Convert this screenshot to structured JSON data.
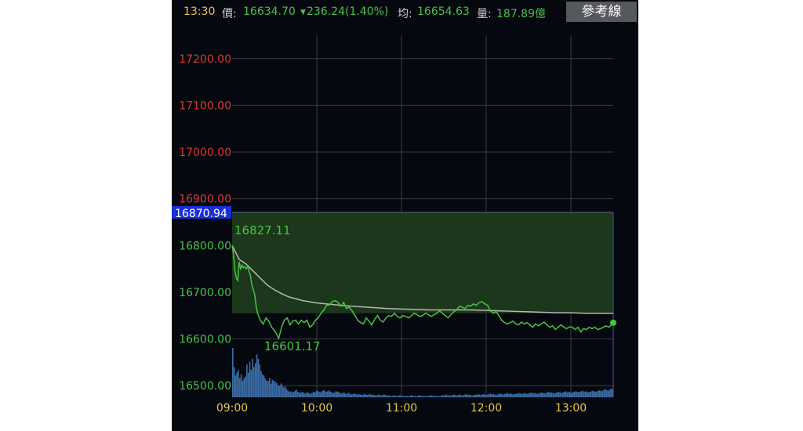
{
  "header": {
    "time": "13:30",
    "price_label": "價:",
    "price": "16634.70",
    "change_arrow": "▼",
    "change": "236.24(1.40%)",
    "avg_label": "均:",
    "avg": "16654.63",
    "volume_label": "量:",
    "volume": "187.89億",
    "ref_button": "參考線"
  },
  "colors": {
    "background": "#06080f",
    "grid": "#3a3d47",
    "up_text": "#d63a2e",
    "down_text": "#49c24a",
    "time_text": "#e3c84a",
    "price_line": "#46c53e",
    "avg_line": "#b7b7b7",
    "volume": "#3a6ea8",
    "ref_label_bg": "#1a2fd8",
    "fill": "#1e3a1c"
  },
  "chart_data": {
    "type": "line",
    "reference_price": 16870.94,
    "reference_label": "16870.94",
    "ylim": [
      16475,
      17250
    ],
    "y_ticks": [
      "17200.00",
      "17100.00",
      "17000.00",
      "16900.00",
      "16800.00",
      "16700.00",
      "16600.00",
      "16500.00"
    ],
    "x_ticks": [
      "09:00",
      "10:00",
      "11:00",
      "12:00",
      "13:00"
    ],
    "x_range_minutes": [
      0,
      270
    ],
    "high_label": "16827.11",
    "low_label": "16601.17",
    "series": [
      {
        "role": "price",
        "points": [
          [
            0,
            16800
          ],
          [
            1,
            16780
          ],
          [
            2,
            16745
          ],
          [
            3,
            16730
          ],
          [
            4,
            16725
          ],
          [
            5,
            16765
          ],
          [
            6,
            16750
          ],
          [
            7,
            16758
          ],
          [
            8,
            16752
          ],
          [
            9,
            16755
          ],
          [
            10,
            16750
          ],
          [
            11,
            16755
          ],
          [
            12,
            16745
          ],
          [
            13,
            16735
          ],
          [
            14,
            16715
          ],
          [
            15,
            16705
          ],
          [
            16,
            16695
          ],
          [
            17,
            16670
          ],
          [
            18,
            16655
          ],
          [
            20,
            16640
          ],
          [
            22,
            16632
          ],
          [
            24,
            16645
          ],
          [
            26,
            16638
          ],
          [
            28,
            16625
          ],
          [
            30,
            16618
          ],
          [
            32,
            16608
          ],
          [
            33,
            16601
          ],
          [
            35,
            16625
          ],
          [
            37,
            16640
          ],
          [
            39,
            16645
          ],
          [
            41,
            16630
          ],
          [
            43,
            16638
          ],
          [
            45,
            16640
          ],
          [
            47,
            16632
          ],
          [
            49,
            16640
          ],
          [
            51,
            16635
          ],
          [
            53,
            16640
          ],
          [
            55,
            16625
          ],
          [
            57,
            16630
          ],
          [
            59,
            16640
          ],
          [
            61,
            16645
          ],
          [
            63,
            16655
          ],
          [
            65,
            16662
          ],
          [
            67,
            16672
          ],
          [
            69,
            16673
          ],
          [
            71,
            16680
          ],
          [
            73,
            16682
          ],
          [
            75,
            16678
          ],
          [
            77,
            16670
          ],
          [
            79,
            16678
          ],
          [
            81,
            16665
          ],
          [
            83,
            16668
          ],
          [
            85,
            16660
          ],
          [
            87,
            16650
          ],
          [
            89,
            16640
          ],
          [
            91,
            16635
          ],
          [
            93,
            16632
          ],
          [
            95,
            16645
          ],
          [
            97,
            16638
          ],
          [
            99,
            16630
          ],
          [
            101,
            16642
          ],
          [
            103,
            16650
          ],
          [
            105,
            16640
          ],
          [
            107,
            16636
          ],
          [
            109,
            16645
          ],
          [
            111,
            16650
          ],
          [
            113,
            16648
          ],
          [
            115,
            16655
          ],
          [
            117,
            16648
          ],
          [
            119,
            16645
          ],
          [
            121,
            16650
          ],
          [
            123,
            16648
          ],
          [
            125,
            16645
          ],
          [
            127,
            16650
          ],
          [
            129,
            16655
          ],
          [
            131,
            16652
          ],
          [
            133,
            16648
          ],
          [
            135,
            16650
          ],
          [
            137,
            16655
          ],
          [
            139,
            16652
          ],
          [
            141,
            16648
          ],
          [
            143,
            16652
          ],
          [
            145,
            16655
          ],
          [
            147,
            16660
          ],
          [
            149,
            16655
          ],
          [
            151,
            16650
          ],
          [
            153,
            16645
          ],
          [
            155,
            16652
          ],
          [
            157,
            16658
          ],
          [
            159,
            16662
          ],
          [
            161,
            16670
          ],
          [
            163,
            16668
          ],
          [
            165,
            16665
          ],
          [
            167,
            16672
          ],
          [
            169,
            16670
          ],
          [
            171,
            16675
          ],
          [
            173,
            16672
          ],
          [
            175,
            16678
          ],
          [
            177,
            16680
          ],
          [
            179,
            16675
          ],
          [
            181,
            16672
          ],
          [
            183,
            16660
          ],
          [
            185,
            16655
          ],
          [
            187,
            16658
          ],
          [
            189,
            16650
          ],
          [
            191,
            16640
          ],
          [
            193,
            16635
          ],
          [
            195,
            16632
          ],
          [
            197,
            16635
          ],
          [
            199,
            16638
          ],
          [
            201,
            16632
          ],
          [
            203,
            16630
          ],
          [
            205,
            16636
          ],
          [
            207,
            16632
          ],
          [
            209,
            16635
          ],
          [
            211,
            16630
          ],
          [
            213,
            16625
          ],
          [
            215,
            16632
          ],
          [
            217,
            16628
          ],
          [
            219,
            16632
          ],
          [
            221,
            16636
          ],
          [
            223,
            16630
          ],
          [
            225,
            16625
          ],
          [
            227,
            16628
          ],
          [
            229,
            16620
          ],
          [
            231,
            16625
          ],
          [
            233,
            16630
          ],
          [
            235,
            16625
          ],
          [
            237,
            16622
          ],
          [
            239,
            16626
          ],
          [
            241,
            16625
          ],
          [
            243,
            16620
          ],
          [
            245,
            16625
          ],
          [
            247,
            16615
          ],
          [
            249,
            16622
          ],
          [
            251,
            16620
          ],
          [
            253,
            16625
          ],
          [
            255,
            16622
          ],
          [
            257,
            16625
          ],
          [
            259,
            16620
          ],
          [
            261,
            16622
          ],
          [
            263,
            16625
          ],
          [
            265,
            16628
          ],
          [
            267,
            16625
          ],
          [
            270,
            16634.7
          ]
        ]
      },
      {
        "role": "average",
        "points": [
          [
            0,
            16800
          ],
          [
            5,
            16770
          ],
          [
            10,
            16760
          ],
          [
            15,
            16745
          ],
          [
            20,
            16730
          ],
          [
            25,
            16715
          ],
          [
            30,
            16705
          ],
          [
            35,
            16697
          ],
          [
            40,
            16690
          ],
          [
            50,
            16682
          ],
          [
            60,
            16677
          ],
          [
            70,
            16674
          ],
          [
            80,
            16671
          ],
          [
            90,
            16669
          ],
          [
            100,
            16667
          ],
          [
            110,
            16665
          ],
          [
            120,
            16664
          ],
          [
            130,
            16663
          ],
          [
            140,
            16662
          ],
          [
            150,
            16662
          ],
          [
            160,
            16662
          ],
          [
            170,
            16662
          ],
          [
            180,
            16661
          ],
          [
            190,
            16660
          ],
          [
            200,
            16659
          ],
          [
            210,
            16658
          ],
          [
            220,
            16657
          ],
          [
            230,
            16656
          ],
          [
            240,
            16656
          ],
          [
            250,
            16655
          ],
          [
            260,
            16655
          ],
          [
            270,
            16654.63
          ]
        ]
      }
    ],
    "volume": [
      0.9,
      0.55,
      0.4,
      0.45,
      0.5,
      0.35,
      0.42,
      0.3,
      0.35,
      0.38,
      0.6,
      0.45,
      0.65,
      0.5,
      0.7,
      0.55,
      0.62,
      0.78,
      0.7,
      0.6,
      0.48,
      0.42,
      0.4,
      0.34,
      0.3,
      0.3,
      0.35,
      0.25,
      0.32,
      0.3,
      0.28,
      0.26,
      0.22,
      0.2,
      0.25,
      0.22,
      0.18,
      0.2,
      0.15,
      0.12,
      0.1,
      0.11,
      0.09,
      0.1,
      0.12,
      0.14,
      0.1,
      0.09,
      0.08,
      0.1,
      0.09,
      0.07,
      0.08,
      0.09,
      0.07,
      0.06,
      0.08,
      0.1,
      0.09,
      0.11,
      0.12,
      0.1,
      0.09,
      0.11,
      0.13,
      0.12,
      0.1,
      0.11,
      0.13,
      0.1,
      0.09,
      0.08,
      0.09,
      0.11,
      0.1,
      0.09,
      0.08,
      0.07,
      0.09,
      0.08,
      0.06,
      0.07,
      0.08,
      0.06,
      0.05,
      0.06,
      0.07,
      0.06,
      0.05,
      0.06,
      0.05,
      0.04,
      0.05,
      0.06,
      0.05,
      0.04,
      0.05,
      0.06,
      0.04,
      0.05,
      0.04,
      0.03,
      0.04,
      0.05,
      0.04,
      0.03,
      0.04,
      0.05,
      0.04,
      0.03,
      0.04,
      0.03,
      0.02,
      0.03,
      0.04,
      0.03,
      0.02,
      0.03,
      0.04,
      0.03,
      0.02,
      0.03,
      0.02,
      0.03,
      0.02,
      0.03,
      0.04,
      0.03,
      0.02,
      0.03,
      0.02,
      0.03,
      0.04,
      0.03,
      0.02,
      0.03,
      0.02,
      0.03,
      0.02,
      0.03,
      0.04,
      0.03,
      0.02,
      0.03,
      0.02,
      0.03,
      0.02,
      0.03,
      0.04,
      0.03,
      0.05,
      0.04,
      0.03,
      0.04,
      0.03,
      0.04,
      0.05,
      0.04,
      0.03,
      0.04,
      0.05,
      0.04,
      0.03,
      0.04,
      0.05,
      0.06,
      0.04,
      0.05,
      0.04,
      0.03,
      0.04,
      0.05,
      0.04,
      0.06,
      0.05,
      0.04,
      0.05,
      0.06,
      0.05,
      0.04,
      0.05,
      0.06,
      0.07,
      0.05,
      0.06,
      0.05,
      0.04,
      0.05,
      0.06,
      0.07,
      0.06,
      0.05,
      0.06,
      0.07,
      0.08,
      0.06,
      0.07,
      0.06,
      0.05,
      0.06,
      0.07,
      0.06,
      0.08,
      0.07,
      0.06,
      0.07,
      0.08,
      0.07,
      0.06,
      0.07,
      0.08,
      0.09,
      0.07,
      0.08,
      0.07,
      0.06,
      0.07,
      0.08,
      0.09,
      0.08,
      0.07,
      0.08,
      0.09,
      0.1,
      0.08,
      0.09,
      0.08,
      0.07,
      0.08,
      0.09,
      0.1,
      0.09,
      0.08,
      0.09,
      0.1,
      0.11,
      0.09,
      0.1,
      0.09,
      0.08,
      0.09,
      0.1,
      0.11,
      0.1,
      0.09,
      0.1,
      0.11,
      0.12,
      0.1,
      0.11,
      0.1,
      0.09,
      0.1,
      0.11,
      0.12,
      0.11,
      0.1,
      0.11,
      0.12,
      0.13,
      0.11,
      0.12,
      0.14,
      0.15,
      0.13,
      0.12,
      0.14,
      0.16,
      0.15
    ]
  }
}
